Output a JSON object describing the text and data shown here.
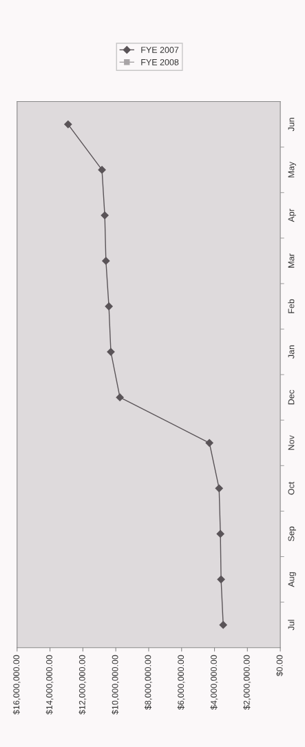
{
  "chart_data": {
    "type": "line",
    "orientation": "horizontal",
    "categories": [
      "Jun",
      "May",
      "Apr",
      "Mar",
      "Feb",
      "Jan",
      "Dec",
      "Nov",
      "Oct",
      "Sep",
      "Aug",
      "Jul"
    ],
    "series": [
      {
        "name": "FYE 2007",
        "color": "#5a5458",
        "marker": "diamond",
        "values": [
          12900000,
          10840000,
          10670000,
          10600000,
          10420000,
          10300000,
          9750000,
          4310000,
          3720000,
          3640000,
          3600000,
          3470000
        ]
      },
      {
        "name": "FYE 2008",
        "color": "#a8a4a6",
        "marker": "square",
        "values": [
          null,
          null,
          null,
          null,
          null,
          null,
          null,
          null,
          null,
          null,
          null,
          null
        ]
      }
    ],
    "xlim": [
      16000000,
      0
    ],
    "xticks": [
      {
        "value": 0,
        "label": "$0.00"
      },
      {
        "value": 2000000,
        "label": "$2,000,000.00"
      },
      {
        "value": 4000000,
        "label": "$4,000,000.00"
      },
      {
        "value": 6000000,
        "label": "$6,000,000.00"
      },
      {
        "value": 8000000,
        "label": "$8,000,000.00"
      },
      {
        "value": 10000000,
        "label": "$10,000,000.00"
      },
      {
        "value": 12000000,
        "label": "$12,000,000.00"
      },
      {
        "value": 14000000,
        "label": "$14,000,000.00"
      },
      {
        "value": 16000000,
        "label": "$16,000,000.00"
      }
    ],
    "grid": false,
    "legend": "top"
  }
}
